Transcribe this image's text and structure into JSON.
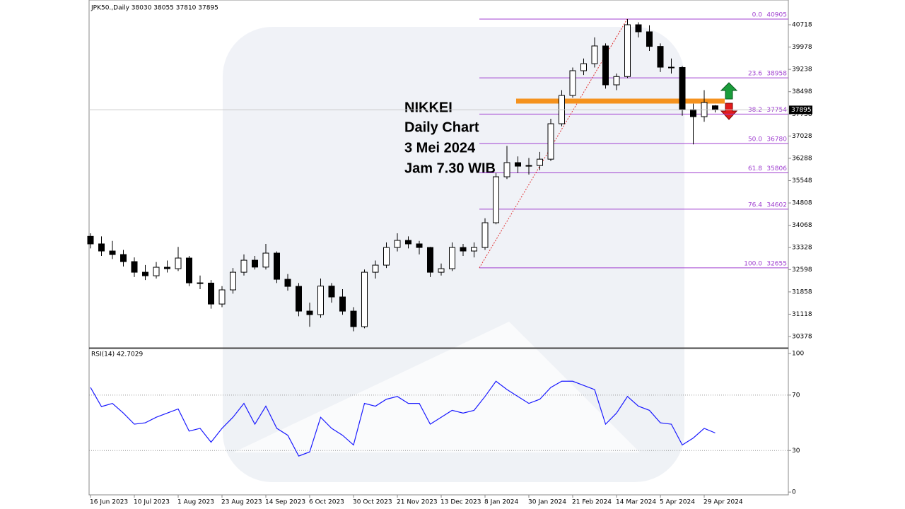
{
  "chart_data": [
    {
      "type": "candlestick",
      "header": "JPK50.,Daily  38030 38055 37810 37895",
      "annotation": [
        "NIKKEI",
        "Daily Chart",
        "3 Mei 2024",
        "Jam 7.30 WIB"
      ],
      "categories": [
        "16 Jun 2023",
        null,
        null,
        null,
        "10 Jul 2023",
        null,
        null,
        null,
        "1 Aug 2023",
        null,
        null,
        null,
        "23 Aug 2023",
        null,
        null,
        null,
        "14 Sep 2023",
        null,
        null,
        null,
        "6 Oct 2023",
        null,
        null,
        null,
        "30 Oct 2023",
        null,
        null,
        null,
        "21 Nov 2023",
        null,
        null,
        null,
        "13 Dec 2023",
        null,
        null,
        null,
        "8 Jan 2024",
        null,
        null,
        null,
        "30 Jan 2024",
        null,
        null,
        null,
        "21 Feb 2024",
        null,
        null,
        null,
        "14 Mar 2024",
        null,
        null,
        null,
        "5 Apr 2024",
        null,
        null,
        null,
        "29 Apr 2024",
        null
      ],
      "open": [
        33700,
        33450,
        33214,
        33097,
        32862,
        32510,
        32393,
        32675,
        32628,
        32980,
        32158,
        32150,
        31455,
        31925,
        32510,
        32909,
        32680,
        33144,
        32276,
        32041,
        31221,
        31104,
        32050,
        31690,
        31220,
        30705,
        32510,
        32745,
        33331,
        33566,
        33450,
        33331,
        32510,
        32628,
        33331,
        33214,
        33331,
        34152,
        35676,
        36145,
        36028,
        36050,
        36260,
        37435,
        38373,
        39194,
        39428,
        40015,
        38725,
        39000,
        40718,
        40484,
        40000,
        39311,
        39300,
        37904,
        37670,
        38030
      ],
      "high": [
        33800,
        33700,
        33550,
        33250,
        33000,
        32750,
        32850,
        32900,
        33350,
        33050,
        32400,
        32250,
        32050,
        32650,
        33100,
        33050,
        33450,
        33200,
        32450,
        32150,
        31500,
        32300,
        32150,
        31950,
        31350,
        32600,
        32900,
        33500,
        33800,
        33700,
        33550,
        33350,
        32800,
        33500,
        33450,
        33500,
        34300,
        35800,
        36700,
        36350,
        36300,
        36500,
        37600,
        38550,
        39300,
        39600,
        40300,
        40100,
        39100,
        40910,
        40800,
        40700,
        40100,
        39600,
        39350,
        38100,
        38550,
        38055
      ],
      "low": [
        33300,
        33050,
        32950,
        32700,
        32350,
        32250,
        32300,
        32500,
        32550,
        32050,
        31950,
        31300,
        31350,
        31800,
        32400,
        32600,
        32600,
        32150,
        31900,
        31050,
        30700,
        31000,
        31500,
        31100,
        30550,
        30650,
        32300,
        32650,
        33200,
        33300,
        33100,
        32350,
        32400,
        32550,
        33050,
        33000,
        33250,
        34100,
        35600,
        35800,
        35750,
        35900,
        36200,
        37350,
        38300,
        39050,
        39300,
        38600,
        38550,
        38950,
        40300,
        39850,
        39150,
        39100,
        37700,
        36750,
        37500,
        37810
      ],
      "close": [
        33450,
        33214,
        33097,
        32862,
        32510,
        32393,
        32675,
        32628,
        32980,
        32158,
        32150,
        31455,
        31925,
        32510,
        32909,
        32680,
        33144,
        32276,
        32041,
        31221,
        31104,
        32050,
        31690,
        31220,
        30705,
        32510,
        32745,
        33331,
        33566,
        33450,
        33331,
        32510,
        32628,
        33331,
        33214,
        33331,
        34152,
        35676,
        36145,
        36028,
        36050,
        36260,
        37435,
        38373,
        39194,
        39428,
        40015,
        38725,
        39000,
        40718,
        40484,
        40000,
        39311,
        39300,
        37904,
        37670,
        38139,
        37895
      ],
      "ylim": [
        30003,
        41539
      ],
      "yticks": [
        40718,
        39978,
        39238,
        38498,
        37758,
        37028,
        36288,
        35548,
        34808,
        34068,
        33328,
        32598,
        31858,
        31118,
        30378
      ],
      "fibonacci": [
        {
          "ratio": {
            "value": 0,
            "label": "0.0"
          },
          "price": 40905
        },
        {
          "ratio": 23.6,
          "price": 38958
        },
        {
          "ratio": 38.2,
          "price": 37754
        },
        {
          "ratio": {
            "value": 50,
            "label": "50.0"
          },
          "price": 36780
        },
        {
          "ratio": 61.8,
          "price": 35806
        },
        {
          "ratio": 76.4,
          "price": 34602
        },
        {
          "ratio": {
            "value": 100,
            "label": "100.0"
          },
          "price": 32655
        }
      ],
      "fib_color": "#a040d0",
      "key_level": 38185,
      "key_level_color": "#f5921e",
      "bull_color": "#ffffff",
      "bear_color": "#000000"
    },
    {
      "type": "line",
      "label": "RSI(14) 42.7029",
      "color": "#1a1aff",
      "values": [
        75.5,
        61.7,
        64,
        57,
        49,
        50,
        54,
        57,
        60,
        44,
        46,
        36,
        46,
        54,
        64,
        49,
        62,
        46,
        41,
        26,
        29,
        54,
        46,
        41,
        34,
        64,
        62,
        67,
        69,
        64,
        64,
        49,
        54,
        59,
        57,
        59,
        69,
        80,
        74,
        69,
        64,
        67,
        75.5,
        80,
        80,
        77,
        74,
        49,
        57,
        69,
        62,
        59,
        50,
        49,
        34,
        39,
        46,
        42.7
      ],
      "ylim": [
        -2,
        103.6
      ],
      "yticks": [
        0,
        30,
        70,
        100
      ],
      "levels": [
        30,
        70
      ]
    }
  ]
}
